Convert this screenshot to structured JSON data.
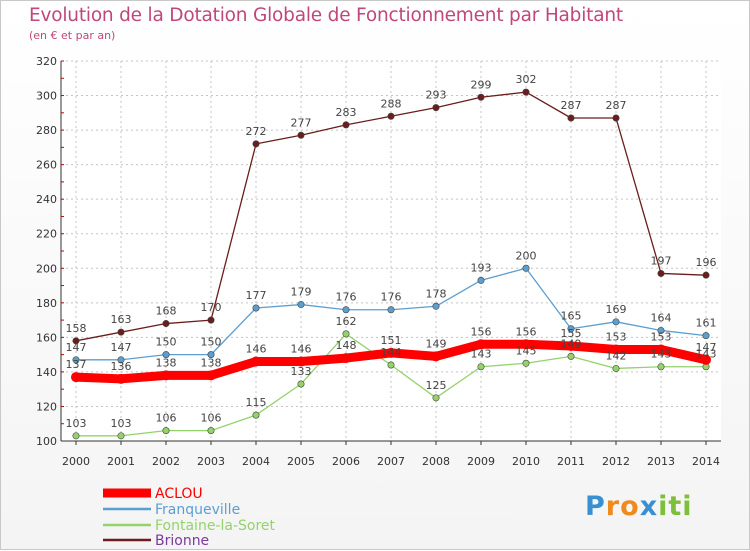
{
  "header": {
    "title": "Evolution de la Dotation Globale de Fonctionnement par Habitant",
    "subtitle": "(en € et par an)"
  },
  "logo": {
    "text": "Proxiti",
    "letters": [
      "P",
      "r",
      "o",
      "x",
      "i",
      "t",
      "i"
    ],
    "colors": [
      "#3a8fd0",
      "#f08a1c",
      "#f08a1c",
      "#3a8fd0",
      "#7dbf3a",
      "#7dbf3a",
      "#7dbf3a"
    ]
  },
  "chart_data": {
    "type": "line",
    "x": [
      "2000",
      "2001",
      "2002",
      "2003",
      "2004",
      "2005",
      "2006",
      "2007",
      "2008",
      "2009",
      "2010",
      "2011",
      "2012",
      "2013",
      "2014"
    ],
    "ylim": [
      100,
      320
    ],
    "yticks": [
      "100",
      "120",
      "140",
      "160",
      "180",
      "200",
      "220",
      "240",
      "260",
      "280",
      "300",
      "320"
    ],
    "grid": true,
    "legend_position": "bottom-left",
    "series": [
      {
        "name": "ACLOU",
        "color": "#ff0000",
        "values": [
          137,
          136,
          138,
          138,
          146,
          146,
          148,
          151,
          149,
          156,
          156,
          155,
          153,
          153,
          147
        ],
        "labels": [
          "137",
          "136",
          "138",
          "138",
          "146",
          "146",
          "148",
          "151",
          "149",
          "156",
          "156",
          "155",
          "153",
          "153",
          "147"
        ]
      },
      {
        "name": "Franqueville",
        "color": "#5b9fd0",
        "values": [
          147,
          147,
          150,
          150,
          177,
          179,
          176,
          176,
          178,
          193,
          200,
          165,
          169,
          164,
          161
        ],
        "labels": [
          "147",
          "147",
          "150",
          "150",
          "177",
          "179",
          "176",
          "176",
          "178",
          "193",
          "200",
          "165",
          "169",
          "164",
          "161"
        ]
      },
      {
        "name": "Fontaine-la-Soret",
        "color": "#93d36a",
        "values": [
          103,
          103,
          106,
          106,
          115,
          133,
          162,
          144,
          125,
          143,
          145,
          149,
          142,
          143,
          143
        ],
        "labels": [
          "103",
          "103",
          "106",
          "106",
          "115",
          "133",
          "162",
          "144",
          "125",
          "143",
          "145",
          "149",
          "142",
          "143",
          "143"
        ]
      },
      {
        "name": "Brionne",
        "color": "#6b1d1d",
        "values": [
          158,
          163,
          168,
          170,
          272,
          277,
          283,
          288,
          293,
          299,
          302,
          287,
          287,
          197,
          196
        ],
        "labels": [
          "158",
          "163",
          "168",
          "170",
          "272",
          "277",
          "283",
          "288",
          "293",
          "299",
          "302",
          "287",
          "287",
          "197",
          "196"
        ]
      }
    ]
  }
}
